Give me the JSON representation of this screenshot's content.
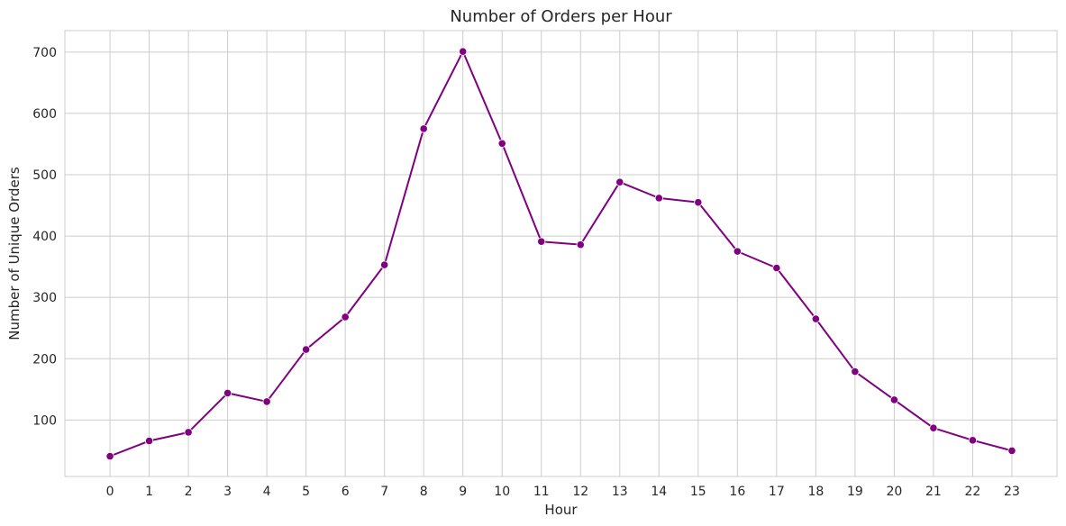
{
  "chart_data": {
    "type": "line",
    "title": "Number of Orders per Hour",
    "xlabel": "Hour",
    "ylabel": "Number of Unique Orders",
    "x": [
      0,
      1,
      2,
      3,
      4,
      5,
      6,
      7,
      8,
      9,
      10,
      11,
      12,
      13,
      14,
      15,
      16,
      17,
      18,
      19,
      20,
      21,
      22,
      23
    ],
    "series": [
      {
        "values": [
          41,
          66,
          80,
          144,
          130,
          215,
          268,
          353,
          575,
          701,
          551,
          391,
          386,
          488,
          462,
          455,
          375,
          348,
          265,
          179,
          133,
          87,
          67,
          50
        ]
      }
    ],
    "xticks": [
      "0",
      "1",
      "2",
      "3",
      "4",
      "5",
      "6",
      "7",
      "8",
      "9",
      "10",
      "11",
      "12",
      "13",
      "14",
      "15",
      "16",
      "17",
      "18",
      "19",
      "20",
      "21",
      "22",
      "23"
    ],
    "yticks": [
      100,
      200,
      300,
      400,
      500,
      600,
      700
    ],
    "xlim": [
      -1.15,
      24.15
    ],
    "ylim": [
      8,
      735
    ],
    "grid": true,
    "line_color": "#800080",
    "marker": "circle"
  }
}
